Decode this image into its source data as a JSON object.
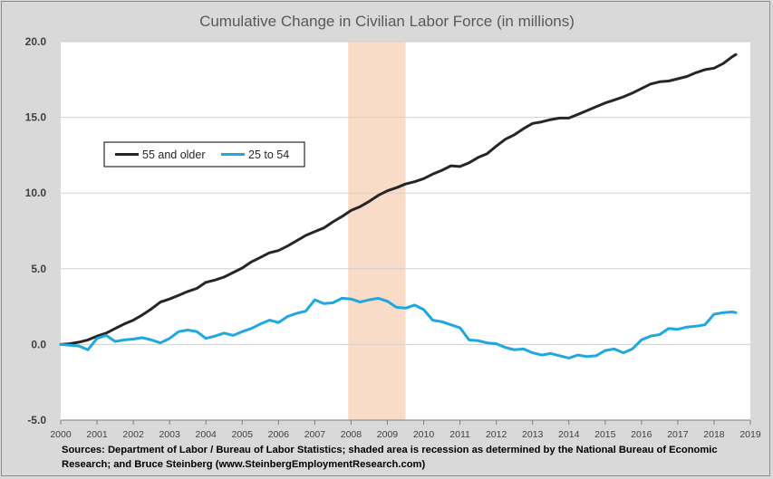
{
  "chart_data": {
    "type": "line",
    "title": "Cumulative Change in Civilian Labor Force (in millions)",
    "xlabel": "",
    "ylabel": "",
    "xlim": [
      2000,
      2019
    ],
    "ylim": [
      -5,
      20
    ],
    "x_ticks": [
      "2000",
      "2001",
      "2002",
      "2003",
      "2004",
      "2005",
      "2006",
      "2007",
      "2008",
      "2009",
      "2010",
      "2011",
      "2012",
      "2013",
      "2014",
      "2015",
      "2016",
      "2017",
      "2018",
      "2019"
    ],
    "y_ticks": [
      "20.0",
      "15.0",
      "10.0",
      "5.0",
      "0.0",
      "-5.0"
    ],
    "y_tick_values": [
      20,
      15,
      10,
      5,
      0,
      -5
    ],
    "grid": "horizontal",
    "legend_position": "upper-left",
    "recession_shading": {
      "start": 2007.92,
      "end": 2009.5,
      "color": "#f8dcc8"
    },
    "series": [
      {
        "name": "55 and older",
        "color": "#262626",
        "points": [
          [
            2000.0,
            0.0
          ],
          [
            2000.25,
            0.05
          ],
          [
            2000.5,
            0.15
          ],
          [
            2000.75,
            0.3
          ],
          [
            2001.0,
            0.55
          ],
          [
            2001.25,
            0.75
          ],
          [
            2001.5,
            1.05
          ],
          [
            2001.75,
            1.35
          ],
          [
            2002.0,
            1.6
          ],
          [
            2002.25,
            1.95
          ],
          [
            2002.5,
            2.35
          ],
          [
            2002.75,
            2.8
          ],
          [
            2003.0,
            3.0
          ],
          [
            2003.25,
            3.25
          ],
          [
            2003.5,
            3.5
          ],
          [
            2003.75,
            3.7
          ],
          [
            2004.0,
            4.1
          ],
          [
            2004.25,
            4.25
          ],
          [
            2004.5,
            4.45
          ],
          [
            2004.75,
            4.75
          ],
          [
            2005.0,
            5.05
          ],
          [
            2005.25,
            5.45
          ],
          [
            2005.5,
            5.75
          ],
          [
            2005.75,
            6.05
          ],
          [
            2006.0,
            6.2
          ],
          [
            2006.25,
            6.5
          ],
          [
            2006.5,
            6.85
          ],
          [
            2006.75,
            7.2
          ],
          [
            2007.0,
            7.45
          ],
          [
            2007.25,
            7.7
          ],
          [
            2007.5,
            8.1
          ],
          [
            2007.75,
            8.45
          ],
          [
            2008.0,
            8.85
          ],
          [
            2008.25,
            9.1
          ],
          [
            2008.5,
            9.45
          ],
          [
            2008.75,
            9.85
          ],
          [
            2009.0,
            10.15
          ],
          [
            2009.25,
            10.35
          ],
          [
            2009.5,
            10.6
          ],
          [
            2009.75,
            10.75
          ],
          [
            2010.0,
            10.95
          ],
          [
            2010.25,
            11.25
          ],
          [
            2010.5,
            11.5
          ],
          [
            2010.75,
            11.8
          ],
          [
            2011.0,
            11.75
          ],
          [
            2011.25,
            12.0
          ],
          [
            2011.5,
            12.35
          ],
          [
            2011.75,
            12.6
          ],
          [
            2012.0,
            13.1
          ],
          [
            2012.25,
            13.55
          ],
          [
            2012.5,
            13.85
          ],
          [
            2012.75,
            14.25
          ],
          [
            2013.0,
            14.6
          ],
          [
            2013.25,
            14.7
          ],
          [
            2013.5,
            14.85
          ],
          [
            2013.75,
            14.95
          ],
          [
            2014.0,
            14.95
          ],
          [
            2014.25,
            15.2
          ],
          [
            2014.5,
            15.45
          ],
          [
            2014.75,
            15.7
          ],
          [
            2015.0,
            15.95
          ],
          [
            2015.25,
            16.15
          ],
          [
            2015.5,
            16.35
          ],
          [
            2015.75,
            16.6
          ],
          [
            2016.0,
            16.9
          ],
          [
            2016.25,
            17.2
          ],
          [
            2016.5,
            17.35
          ],
          [
            2016.75,
            17.4
          ],
          [
            2017.0,
            17.55
          ],
          [
            2017.25,
            17.7
          ],
          [
            2017.5,
            17.95
          ],
          [
            2017.75,
            18.15
          ],
          [
            2018.0,
            18.25
          ],
          [
            2018.25,
            18.55
          ],
          [
            2018.5,
            19.0
          ],
          [
            2018.6,
            19.15
          ]
        ]
      },
      {
        "name": "25 to 54",
        "color": "#1fa7e0",
        "points": [
          [
            2000.0,
            0.0
          ],
          [
            2000.25,
            -0.05
          ],
          [
            2000.5,
            -0.1
          ],
          [
            2000.75,
            -0.35
          ],
          [
            2001.0,
            0.4
          ],
          [
            2001.25,
            0.6
          ],
          [
            2001.5,
            0.2
          ],
          [
            2001.75,
            0.3
          ],
          [
            2002.0,
            0.35
          ],
          [
            2002.25,
            0.45
          ],
          [
            2002.5,
            0.3
          ],
          [
            2002.75,
            0.1
          ],
          [
            2003.0,
            0.4
          ],
          [
            2003.25,
            0.85
          ],
          [
            2003.5,
            0.95
          ],
          [
            2003.75,
            0.85
          ],
          [
            2004.0,
            0.4
          ],
          [
            2004.25,
            0.55
          ],
          [
            2004.5,
            0.75
          ],
          [
            2004.75,
            0.6
          ],
          [
            2005.0,
            0.85
          ],
          [
            2005.25,
            1.05
          ],
          [
            2005.5,
            1.35
          ],
          [
            2005.75,
            1.6
          ],
          [
            2006.0,
            1.45
          ],
          [
            2006.25,
            1.85
          ],
          [
            2006.5,
            2.05
          ],
          [
            2006.75,
            2.2
          ],
          [
            2007.0,
            2.95
          ],
          [
            2007.25,
            2.7
          ],
          [
            2007.5,
            2.75
          ],
          [
            2007.75,
            3.05
          ],
          [
            2008.0,
            3.0
          ],
          [
            2008.25,
            2.8
          ],
          [
            2008.5,
            2.95
          ],
          [
            2008.75,
            3.05
          ],
          [
            2009.0,
            2.85
          ],
          [
            2009.25,
            2.45
          ],
          [
            2009.5,
            2.4
          ],
          [
            2009.75,
            2.6
          ],
          [
            2010.0,
            2.3
          ],
          [
            2010.25,
            1.6
          ],
          [
            2010.5,
            1.5
          ],
          [
            2010.75,
            1.3
          ],
          [
            2011.0,
            1.1
          ],
          [
            2011.25,
            0.3
          ],
          [
            2011.5,
            0.25
          ],
          [
            2011.75,
            0.1
          ],
          [
            2012.0,
            0.05
          ],
          [
            2012.25,
            -0.2
          ],
          [
            2012.5,
            -0.35
          ],
          [
            2012.75,
            -0.3
          ],
          [
            2013.0,
            -0.55
          ],
          [
            2013.25,
            -0.7
          ],
          [
            2013.5,
            -0.6
          ],
          [
            2013.75,
            -0.75
          ],
          [
            2014.0,
            -0.9
          ],
          [
            2014.25,
            -0.7
          ],
          [
            2014.5,
            -0.8
          ],
          [
            2014.75,
            -0.75
          ],
          [
            2015.0,
            -0.4
          ],
          [
            2015.25,
            -0.3
          ],
          [
            2015.5,
            -0.55
          ],
          [
            2015.75,
            -0.3
          ],
          [
            2016.0,
            0.3
          ],
          [
            2016.25,
            0.55
          ],
          [
            2016.5,
            0.65
          ],
          [
            2016.75,
            1.05
          ],
          [
            2017.0,
            1.0
          ],
          [
            2017.25,
            1.15
          ],
          [
            2017.5,
            1.2
          ],
          [
            2017.75,
            1.3
          ],
          [
            2018.0,
            2.0
          ],
          [
            2018.25,
            2.1
          ],
          [
            2018.5,
            2.15
          ],
          [
            2018.6,
            2.1
          ]
        ]
      }
    ]
  },
  "source_note": "Sources: Department of Labor / Bureau of Labor Statistics; shaded area is recession as determined by the National Bureau of Economic Research; and Bruce Steinberg (www.SteinbergEmploymentResearch.com)"
}
